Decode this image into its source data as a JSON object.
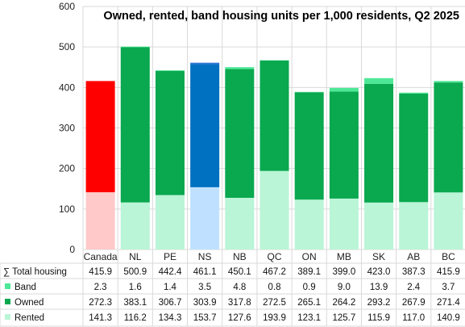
{
  "chart_data": {
    "type": "bar",
    "stacked": true,
    "title": "Owned, rented, band housing units per 1,000 residents, Q2 2025",
    "categories": [
      "Canada",
      "NL",
      "PE",
      "NS",
      "NB",
      "QC",
      "ON",
      "MB",
      "SK",
      "AB",
      "BC"
    ],
    "ylim": [
      0,
      600
    ],
    "yticks": [
      0,
      100,
      200,
      300,
      400,
      500,
      600
    ],
    "grid": true,
    "series": [
      {
        "name": "Rented",
        "values": [
          141.3,
          116.2,
          134.3,
          153.7,
          127.6,
          193.9,
          123.1,
          125.7,
          115.9,
          117.0,
          140.9
        ]
      },
      {
        "name": "Owned",
        "values": [
          272.3,
          383.1,
          306.7,
          303.9,
          317.8,
          272.5,
          265.1,
          264.2,
          293.2,
          267.9,
          271.4
        ]
      },
      {
        "name": "Band",
        "values": [
          2.3,
          1.6,
          1.4,
          3.5,
          4.8,
          0.8,
          0.9,
          9.0,
          13.9,
          2.4,
          3.7
        ]
      }
    ],
    "totals_label": "∑ Total housing",
    "totals": [
      "415.9",
      "500.9",
      "442.4",
      "461.1",
      "450.1",
      "467.2",
      "389.1",
      "399.0",
      "423.0",
      "387.3",
      "415.9"
    ],
    "table_rows": [
      {
        "label": "Band",
        "values": [
          "2.3",
          "1.6",
          "1.4",
          "3.5",
          "4.8",
          "0.8",
          "0.9",
          "9.0",
          "13.9",
          "2.4",
          "3.7"
        ]
      },
      {
        "label": "Owned",
        "values": [
          "272.3",
          "383.1",
          "306.7",
          "303.9",
          "317.8",
          "272.5",
          "265.1",
          "264.2",
          "293.2",
          "267.9",
          "271.4"
        ]
      },
      {
        "label": "Rented",
        "values": [
          "141.3",
          "116.2",
          "134.3",
          "153.7",
          "127.6",
          "193.9",
          "123.1",
          "125.7",
          "115.9",
          "117.0",
          "140.9"
        ]
      }
    ],
    "colors": {
      "rented": "#b9f5d6",
      "owned": "#0aa84f",
      "band": "#4de896",
      "canada_rented": "#ffc9c9",
      "canada_owned": "#ff0000",
      "canada_band": "#ff0000",
      "ns_rented": "#bfe1ff",
      "ns_owned": "#0070c0",
      "ns_band": "#2e75d6",
      "grid": "#d9d9d9"
    }
  }
}
